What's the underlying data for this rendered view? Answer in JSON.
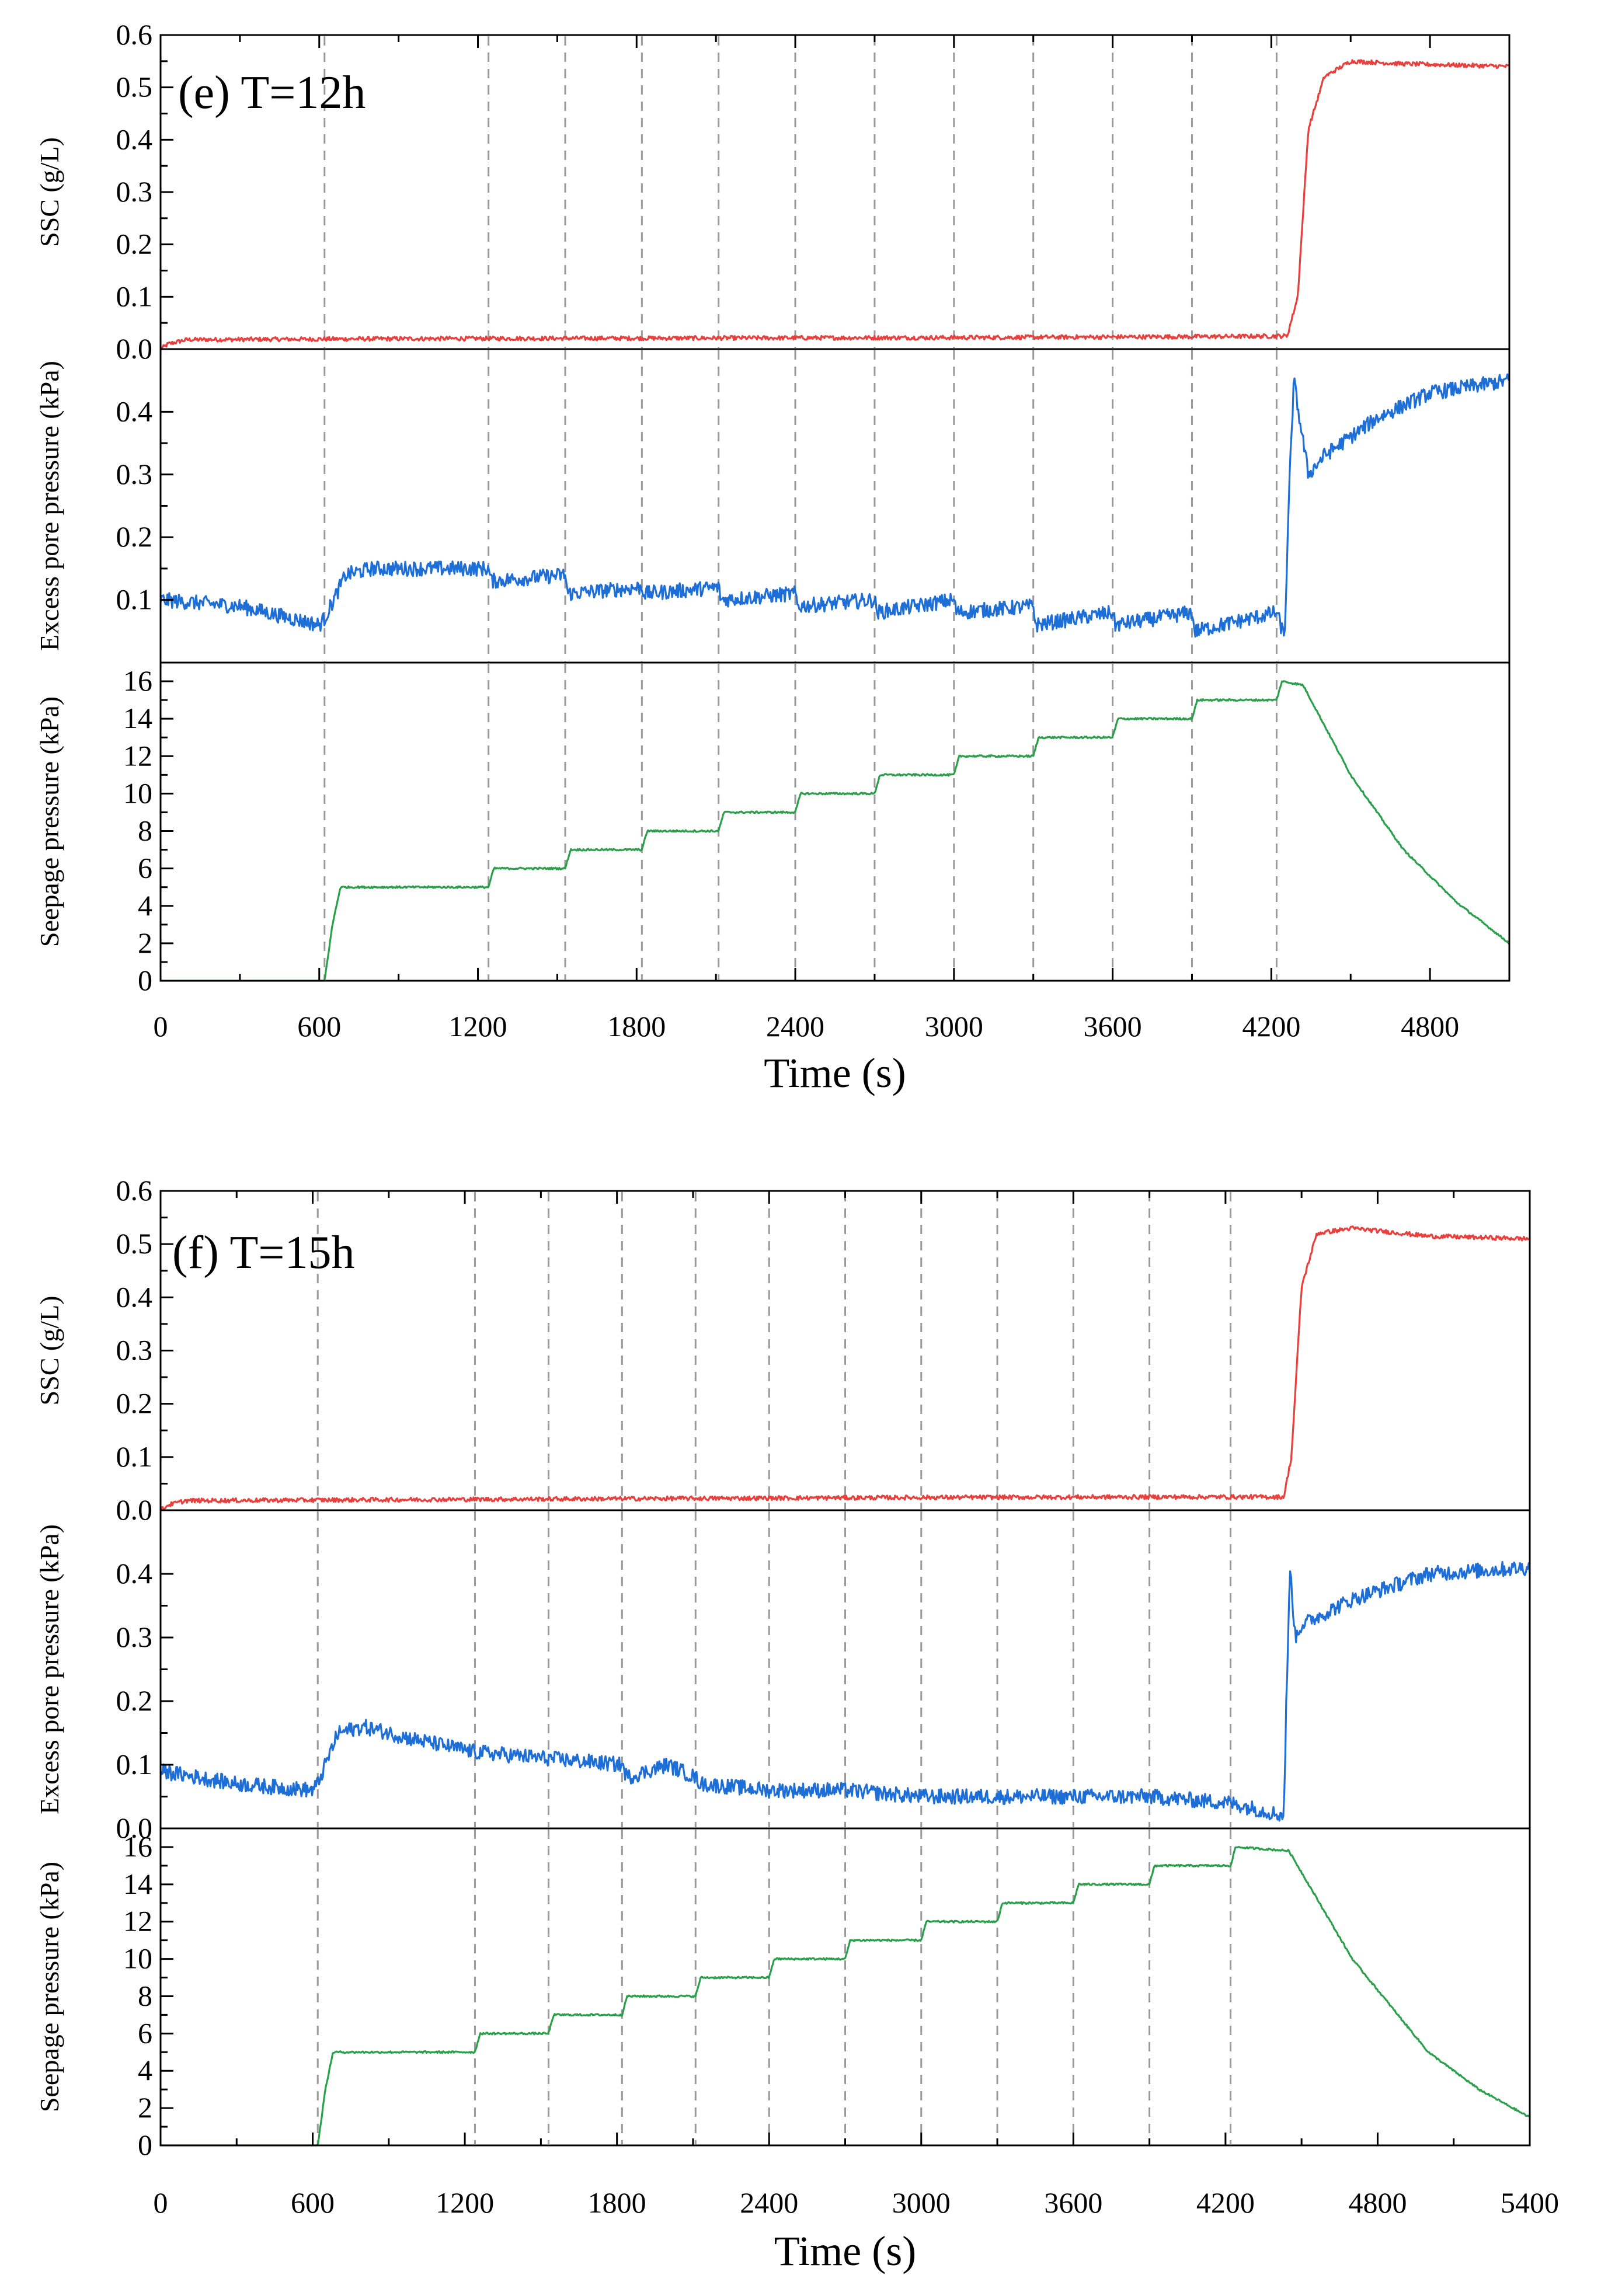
{
  "chart_data": [
    {
      "type": "line",
      "panel_label": "(e) T=12h",
      "xlabel": "Time (s)",
      "xlim": [
        0,
        5100
      ],
      "xticks": [
        0,
        600,
        1200,
        1800,
        2400,
        3000,
        3600,
        4200,
        4800
      ],
      "xtick_labels": [
        "0",
        "600",
        "1200",
        "1800",
        "2400",
        "3000",
        "3600",
        "4200",
        "4800"
      ],
      "stage_lines": [
        620,
        1240,
        1530,
        1820,
        2110,
        2400,
        2700,
        3000,
        3300,
        3600,
        3900,
        4220
      ],
      "subplots": [
        {
          "key": "ssc",
          "ylabel": "SSC (g/L)",
          "ylim": [
            0,
            0.6
          ],
          "yticks": [
            0.0,
            0.1,
            0.2,
            0.3,
            0.4,
            0.5,
            0.6
          ],
          "ytick_labels": [
            "0.0",
            "0.1",
            "0.2",
            "0.3",
            "0.4",
            "0.5",
            "0.6"
          ],
          "color": "#e8403c",
          "series": {
            "name": "SSC",
            "x": [
              0,
              30,
              100,
              1000,
              2000,
              3000,
              4000,
              4260,
              4300,
              4340,
              4400,
              4500,
              4700,
              5100
            ],
            "y": [
              0.0,
              0.01,
              0.018,
              0.02,
              0.021,
              0.022,
              0.024,
              0.025,
              0.1,
              0.42,
              0.52,
              0.55,
              0.545,
              0.54
            ]
          }
        },
        {
          "key": "excess",
          "ylabel": "Excess pore pressure (kPa)",
          "ylim": [
            0,
            0.5
          ],
          "yticks": [
            0.1,
            0.2,
            0.3,
            0.4
          ],
          "ytick_labels": [
            "0.1",
            "0.2",
            "0.3",
            "0.4"
          ],
          "color": "#1e6ed8",
          "series": {
            "name": "Excess pore pressure",
            "x": [
              0,
              300,
              600,
              620,
              700,
              800,
              1000,
              1240,
              1250,
              1530,
              1540,
              1820,
              1830,
              2110,
              2120,
              2400,
              2410,
              2700,
              2710,
              3000,
              3010,
              3300,
              3310,
              3600,
              3610,
              3900,
              3910,
              4220,
              4250,
              4270,
              4285,
              4310,
              4340,
              4400,
              4600,
              4800,
              5100
            ],
            "y": [
              0.1,
              0.09,
              0.06,
              0.07,
              0.14,
              0.15,
              0.15,
              0.15,
              0.13,
              0.14,
              0.11,
              0.12,
              0.11,
              0.12,
              0.1,
              0.11,
              0.09,
              0.1,
              0.08,
              0.1,
              0.08,
              0.09,
              0.06,
              0.08,
              0.06,
              0.08,
              0.05,
              0.08,
              0.04,
              0.3,
              0.45,
              0.38,
              0.3,
              0.33,
              0.39,
              0.43,
              0.45
            ]
          }
        },
        {
          "key": "seepage",
          "ylabel": "Seepage pressure (kPa)",
          "ylim": [
            0,
            17
          ],
          "yticks": [
            0,
            2,
            4,
            6,
            8,
            10,
            12,
            14,
            16
          ],
          "ytick_labels": [
            "0",
            "2",
            "4",
            "6",
            "8",
            "10",
            "12",
            "14",
            "16"
          ],
          "color": "#2aa04a",
          "series": {
            "name": "Seepage pressure",
            "x": [
              0,
              620,
              650,
              680,
              1240,
              1260,
              1530,
              1550,
              1820,
              1840,
              2110,
              2130,
              2400,
              2420,
              2700,
              2720,
              3000,
              3020,
              3300,
              3320,
              3600,
              3620,
              3900,
              3920,
              4220,
              4240,
              4320,
              4500,
              4700,
              4900,
              5100
            ],
            "y": [
              0,
              0,
              3,
              5,
              5,
              6,
              6,
              7,
              7,
              8,
              8,
              9,
              9,
              10,
              10,
              11,
              11,
              12,
              12,
              13,
              13,
              14,
              14,
              15,
              15,
              16,
              15.8,
              11,
              7,
              4.2,
              2
            ]
          }
        }
      ]
    },
    {
      "type": "line",
      "panel_label": "(f) T=15h",
      "xlabel": "Time (s)",
      "xlim": [
        0,
        5400
      ],
      "xticks": [
        0,
        600,
        1200,
        1800,
        2400,
        3000,
        3600,
        4200,
        4800,
        5400
      ],
      "xtick_labels": [
        "0",
        "600",
        "1200",
        "1800",
        "2400",
        "3000",
        "3600",
        "4200",
        "4800",
        "5400"
      ],
      "stage_lines": [
        620,
        1240,
        1530,
        1820,
        2110,
        2400,
        2700,
        3000,
        3300,
        3600,
        3900,
        4220
      ],
      "subplots": [
        {
          "key": "ssc",
          "ylabel": "SSC (g/L)",
          "ylim": [
            0,
            0.6
          ],
          "yticks": [
            0.0,
            0.1,
            0.2,
            0.3,
            0.4,
            0.5,
            0.6
          ],
          "ytick_labels": [
            "0.0",
            "0.1",
            "0.2",
            "0.3",
            "0.4",
            "0.5",
            "0.6"
          ],
          "color": "#e8403c",
          "series": {
            "name": "SSC",
            "x": [
              0,
              30,
              100,
              1000,
              2000,
              3000,
              4000,
              4430,
              4460,
              4500,
              4560,
              4700,
              5000,
              5400
            ],
            "y": [
              0.0,
              0.01,
              0.018,
              0.02,
              0.022,
              0.024,
              0.025,
              0.025,
              0.1,
              0.42,
              0.52,
              0.53,
              0.515,
              0.51
            ]
          }
        },
        {
          "key": "excess",
          "ylabel": "Excess pore pressure (kPa)",
          "ylim": [
            0,
            0.5
          ],
          "yticks": [
            0.0,
            0.1,
            0.2,
            0.3,
            0.4
          ],
          "ytick_labels": [
            "0.0",
            "0.1",
            "0.2",
            "0.3",
            "0.4"
          ],
          "color": "#1e6ed8",
          "series": {
            "name": "Excess pore pressure",
            "x": [
              0,
              300,
              600,
              620,
              700,
              800,
              1000,
              1240,
              1530,
              1820,
              1840,
              2000,
              2110,
              2130,
              2400,
              2700,
              3000,
              3300,
              3600,
              3900,
              4220,
              4430,
              4440,
              4455,
              4475,
              4500,
              4700,
              5000,
              5400
            ],
            "y": [
              0.09,
              0.07,
              0.06,
              0.07,
              0.15,
              0.16,
              0.14,
              0.12,
              0.11,
              0.1,
              0.08,
              0.1,
              0.08,
              0.07,
              0.06,
              0.06,
              0.05,
              0.05,
              0.05,
              0.05,
              0.04,
              0.02,
              0.2,
              0.41,
              0.3,
              0.32,
              0.36,
              0.4,
              0.41
            ]
          }
        },
        {
          "key": "seepage",
          "ylabel": "Seepage pressure (kPa)",
          "ylim": [
            0,
            17
          ],
          "yticks": [
            0,
            2,
            4,
            6,
            8,
            10,
            12,
            14,
            16
          ],
          "ytick_labels": [
            "0",
            "2",
            "4",
            "6",
            "8",
            "10",
            "12",
            "14",
            "16"
          ],
          "color": "#2aa04a",
          "series": {
            "name": "Seepage pressure",
            "x": [
              0,
              620,
              650,
              680,
              1240,
              1260,
              1530,
              1550,
              1820,
              1840,
              2110,
              2130,
              2400,
              2420,
              2700,
              2720,
              3000,
              3020,
              3300,
              3320,
              3600,
              3620,
              3900,
              3920,
              4220,
              4240,
              4450,
              4700,
              5000,
              5200,
              5400
            ],
            "y": [
              0,
              0,
              3,
              5,
              5,
              6,
              6,
              7,
              7,
              8,
              8,
              9,
              9,
              10,
              10,
              11,
              11,
              12,
              12,
              13,
              13,
              14,
              14,
              15,
              15,
              16,
              15.8,
              10,
              5,
              3,
              1.5
            ]
          }
        }
      ]
    }
  ]
}
